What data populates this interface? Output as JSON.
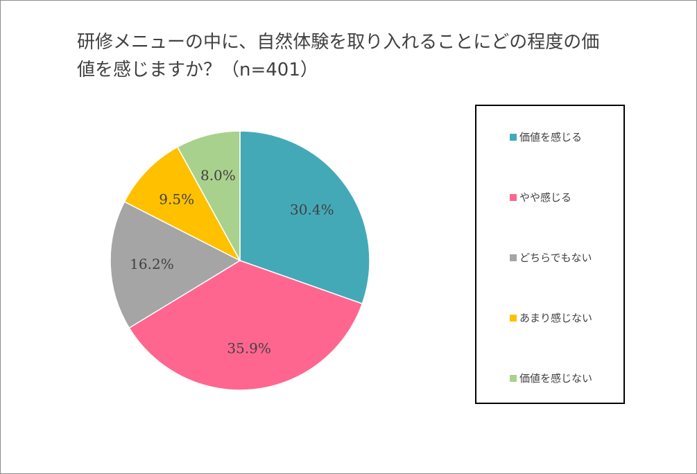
{
  "chart_data": {
    "type": "pie",
    "title": "研修メニューの中に、自然体験を取り入れることにどの程度の価値を感じますか？（n=401）",
    "title_line1": "研修メニューの中に、自然体験を取り入れることにどの程度の価",
    "title_line2": "値を感じますか？（n=401）",
    "slices": [
      {
        "label": "価値を感じる",
        "value": 30.4,
        "display": "30.4%",
        "color": "#44A9B7"
      },
      {
        "label": "やや感じる",
        "value": 35.9,
        "display": "35.9%",
        "color": "#FF668F"
      },
      {
        "label": "どちらでもない",
        "value": 16.2,
        "display": "16.2%",
        "color": "#A5A5A5"
      },
      {
        "label": "あまり感じない",
        "value": 9.5,
        "display": "9.5%",
        "color": "#FFC000"
      },
      {
        "label": "価値を感じない",
        "value": 8.0,
        "display": "8.0%",
        "color": "#A9D18E"
      }
    ],
    "legend_position": "right"
  }
}
